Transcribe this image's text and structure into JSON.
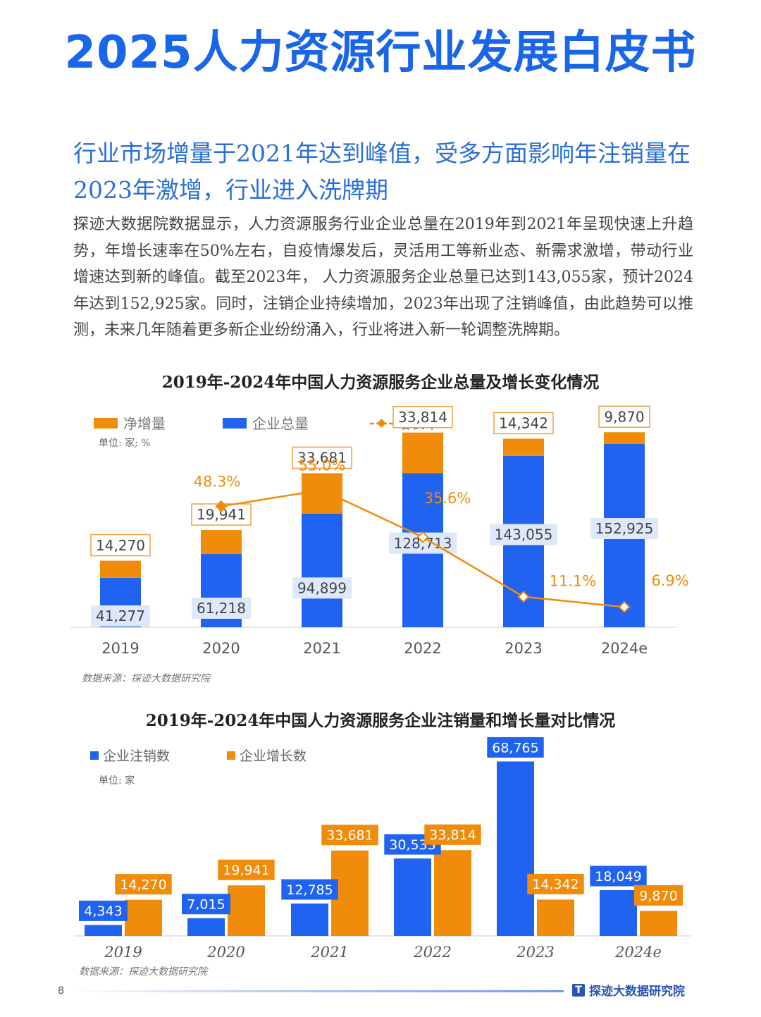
{
  "document": {
    "title": "2025人力资源行业发展白皮书",
    "section_heading": "行业市场增量于2021年达到峰值，受多方面影响年注销量在2023年激增，行业进入洗牌期",
    "body": "探迹大数据院数据显示，人力资源服务行业企业总量在2019年到2021年呈现快速上升趋势，年增长速率在50%左右，自疫情爆发后，灵活用工等新业态、新需求激增，带动行业增速达到新的峰值。截至2023年， 人力资源服务企业总量已达到143,055家，预计2024年达到152,925家。同时，注销企业持续增加，2023年出现了注销峰值，由此趋势可以推测，未来几年随着更多新企业纷纷涌入，行业将进入新一轮调整洗牌期。",
    "page_number": "8",
    "brand": "探迹大数据研究院"
  },
  "colors": {
    "blue": "#1f63f0",
    "orange": "#f08c0a",
    "title_blue": "#1a66e8"
  },
  "chart_data": [
    {
      "type": "bar",
      "stacked": true,
      "title": "2019年-2024年中国人力资源服务企业总量及增长变化情况",
      "unit_note": "单位: 家; %",
      "source": "数据来源：探迹大数据研究院",
      "categories": [
        "2019",
        "2020",
        "2021",
        "2022",
        "2023",
        "2024e"
      ],
      "legend": [
        "净增量",
        "企业总量",
        "增长率"
      ],
      "series": [
        {
          "name": "企业总量",
          "type": "bar",
          "color": "#1f63f0",
          "values": [
            41277,
            61218,
            94899,
            128713,
            143055,
            152925
          ],
          "labels": [
            "41,277",
            "61,218",
            "94,899",
            "128,713",
            "143,055",
            "152,925"
          ]
        },
        {
          "name": "净增量",
          "type": "bar",
          "color": "#f08c0a",
          "values": [
            14270,
            19941,
            33681,
            33814,
            14342,
            9870
          ],
          "labels": [
            "14,270",
            "19,941",
            "33,681",
            "33,814",
            "14,342",
            "9,870"
          ]
        },
        {
          "name": "增长率",
          "type": "line",
          "color": "#f08c0a",
          "values": [
            null,
            48.3,
            55.0,
            35.6,
            11.1,
            6.9
          ],
          "labels": [
            "",
            "48.3%",
            "55.0%",
            "35.6%",
            "11.1%",
            "6.9%"
          ]
        }
      ]
    },
    {
      "type": "bar",
      "title": "2019年-2024年中国人力资源服务企业注销量和增长量对比情况",
      "unit_note": "单位: 家",
      "source": "数据来源：探迹大数据研究院",
      "categories": [
        "2019",
        "2020",
        "2021",
        "2022",
        "2023",
        "2024e"
      ],
      "legend": [
        "企业注销数",
        "企业增长数"
      ],
      "series": [
        {
          "name": "企业注销数",
          "color": "#1f63f0",
          "values": [
            4343,
            7015,
            12785,
            30533,
            68765,
            18049
          ],
          "labels": [
            "4,343",
            "7,015",
            "12,785",
            "30,533",
            "68,765",
            "18,049"
          ]
        },
        {
          "name": "企业增长数",
          "color": "#f08c0a",
          "values": [
            14270,
            19941,
            33681,
            33814,
            14342,
            9870
          ],
          "labels": [
            "14,270",
            "19,941",
            "33,681",
            "33,814",
            "14,342",
            "9,870"
          ]
        }
      ]
    }
  ]
}
